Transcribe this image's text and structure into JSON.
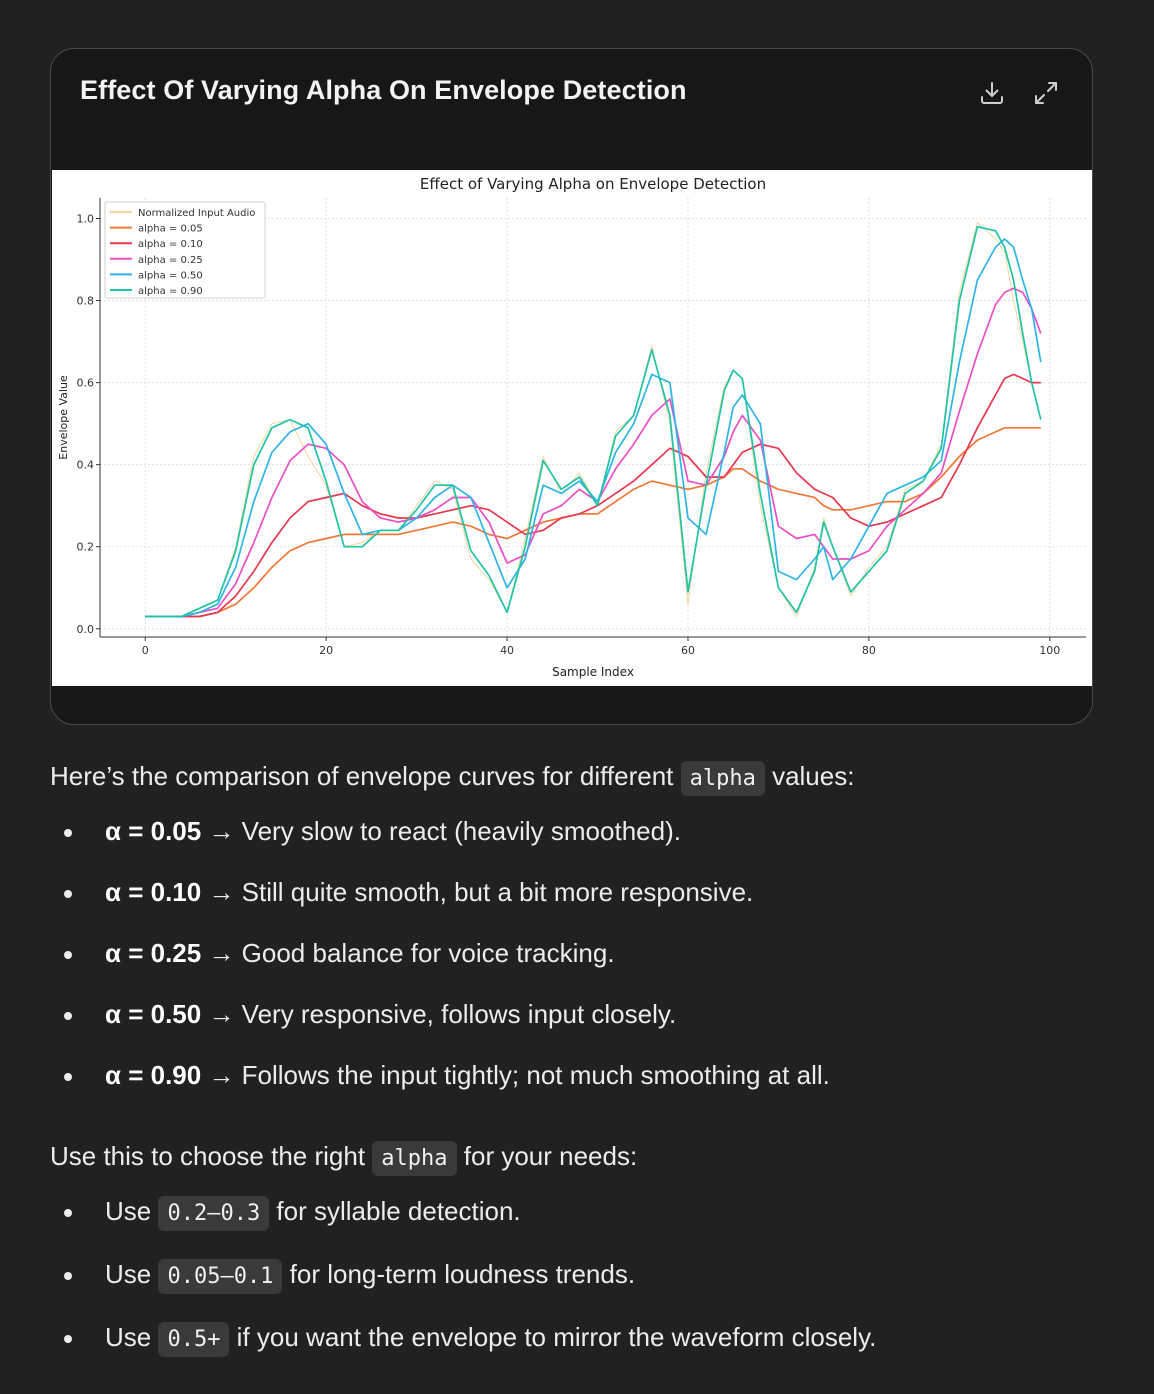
{
  "card": {
    "title": "Effect Of Varying Alpha On Envelope Detection",
    "download_icon": "download-icon",
    "expand_icon": "expand-icon"
  },
  "chart_data": {
    "type": "line",
    "title": "Effect of Varying Alpha on Envelope Detection",
    "xlabel": "Sample Index",
    "ylabel": "Envelope Value",
    "xlim": [
      -5,
      104
    ],
    "ylim": [
      -0.02,
      1.05
    ],
    "xticks": [
      0,
      20,
      40,
      60,
      80,
      100
    ],
    "yticks": [
      0.0,
      0.2,
      0.4,
      0.6,
      0.8,
      1.0
    ],
    "grid": true,
    "legend_position": "top-left",
    "x": [
      0,
      2,
      4,
      6,
      8,
      10,
      12,
      14,
      16,
      18,
      20,
      22,
      24,
      26,
      28,
      30,
      32,
      34,
      36,
      38,
      40,
      42,
      44,
      46,
      48,
      50,
      52,
      54,
      56,
      58,
      60,
      62,
      64,
      65,
      66,
      68,
      70,
      72,
      74,
      75,
      76,
      78,
      80,
      82,
      84,
      86,
      88,
      90,
      92,
      94,
      95,
      96,
      97,
      98,
      99
    ],
    "series": [
      {
        "name": "Normalized Input Audio",
        "color": "#f5d79e",
        "values": [
          0.03,
          0.03,
          0.03,
          0.05,
          0.07,
          0.2,
          0.42,
          0.5,
          0.51,
          0.42,
          0.35,
          0.2,
          0.21,
          0.24,
          0.24,
          0.3,
          0.36,
          0.34,
          0.17,
          0.12,
          0.04,
          0.22,
          0.42,
          0.33,
          0.38,
          0.3,
          0.48,
          0.52,
          0.69,
          0.5,
          0.06,
          0.38,
          0.59,
          0.63,
          0.61,
          0.3,
          0.1,
          0.03,
          0.15,
          0.27,
          0.2,
          0.08,
          0.15,
          0.2,
          0.34,
          0.36,
          0.45,
          0.82,
          0.99,
          0.95,
          0.92,
          0.8,
          0.7,
          0.6,
          0.51
        ]
      },
      {
        "name": "alpha = 0.05",
        "color": "#f07838",
        "values": [
          0.03,
          0.03,
          0.03,
          0.03,
          0.04,
          0.06,
          0.1,
          0.15,
          0.19,
          0.21,
          0.22,
          0.23,
          0.23,
          0.23,
          0.23,
          0.24,
          0.25,
          0.26,
          0.25,
          0.23,
          0.22,
          0.24,
          0.26,
          0.27,
          0.28,
          0.28,
          0.31,
          0.34,
          0.36,
          0.35,
          0.34,
          0.35,
          0.37,
          0.39,
          0.39,
          0.36,
          0.34,
          0.33,
          0.32,
          0.3,
          0.29,
          0.29,
          0.3,
          0.31,
          0.31,
          0.33,
          0.37,
          0.42,
          0.46,
          0.48,
          0.49,
          0.49,
          0.49,
          0.49,
          0.49
        ]
      },
      {
        "name": "alpha = 0.10",
        "color": "#e8384f",
        "values": [
          0.03,
          0.03,
          0.03,
          0.03,
          0.04,
          0.08,
          0.14,
          0.21,
          0.27,
          0.31,
          0.32,
          0.33,
          0.3,
          0.28,
          0.27,
          0.27,
          0.28,
          0.29,
          0.3,
          0.29,
          0.26,
          0.23,
          0.24,
          0.27,
          0.28,
          0.3,
          0.33,
          0.36,
          0.4,
          0.44,
          0.42,
          0.37,
          0.37,
          0.4,
          0.43,
          0.45,
          0.44,
          0.38,
          0.34,
          0.33,
          0.32,
          0.27,
          0.25,
          0.26,
          0.28,
          0.3,
          0.32,
          0.4,
          0.49,
          0.57,
          0.61,
          0.62,
          0.61,
          0.6,
          0.6
        ]
      },
      {
        "name": "alpha = 0.25",
        "color": "#ec4fc3",
        "values": [
          0.03,
          0.03,
          0.03,
          0.04,
          0.05,
          0.11,
          0.21,
          0.32,
          0.41,
          0.45,
          0.44,
          0.4,
          0.31,
          0.27,
          0.26,
          0.27,
          0.29,
          0.32,
          0.32,
          0.26,
          0.16,
          0.18,
          0.28,
          0.3,
          0.34,
          0.31,
          0.39,
          0.45,
          0.52,
          0.56,
          0.36,
          0.35,
          0.42,
          0.48,
          0.52,
          0.46,
          0.25,
          0.22,
          0.23,
          0.2,
          0.17,
          0.17,
          0.19,
          0.25,
          0.29,
          0.33,
          0.38,
          0.53,
          0.67,
          0.79,
          0.82,
          0.83,
          0.82,
          0.78,
          0.72
        ]
      },
      {
        "name": "alpha = 0.50",
        "color": "#2eb5e8",
        "values": [
          0.03,
          0.03,
          0.03,
          0.04,
          0.06,
          0.15,
          0.31,
          0.43,
          0.48,
          0.5,
          0.45,
          0.33,
          0.23,
          0.24,
          0.24,
          0.27,
          0.32,
          0.35,
          0.32,
          0.21,
          0.1,
          0.17,
          0.35,
          0.33,
          0.36,
          0.31,
          0.43,
          0.5,
          0.62,
          0.6,
          0.27,
          0.23,
          0.43,
          0.54,
          0.57,
          0.5,
          0.14,
          0.12,
          0.17,
          0.2,
          0.12,
          0.17,
          0.25,
          0.33,
          0.35,
          0.37,
          0.41,
          0.65,
          0.85,
          0.93,
          0.95,
          0.93,
          0.85,
          0.78,
          0.65
        ]
      },
      {
        "name": "alpha = 0.90",
        "color": "#1ec4a8",
        "values": [
          0.03,
          0.03,
          0.03,
          0.05,
          0.07,
          0.19,
          0.4,
          0.49,
          0.51,
          0.49,
          0.36,
          0.2,
          0.2,
          0.24,
          0.24,
          0.29,
          0.35,
          0.35,
          0.19,
          0.13,
          0.04,
          0.2,
          0.41,
          0.34,
          0.37,
          0.3,
          0.47,
          0.52,
          0.68,
          0.52,
          0.09,
          0.35,
          0.58,
          0.63,
          0.61,
          0.33,
          0.1,
          0.04,
          0.14,
          0.26,
          0.2,
          0.09,
          0.14,
          0.19,
          0.33,
          0.36,
          0.44,
          0.8,
          0.98,
          0.97,
          0.93,
          0.85,
          0.72,
          0.6,
          0.51
        ]
      }
    ]
  },
  "content": {
    "intro": {
      "before": "Here’s the comparison of envelope curves for different ",
      "code": "alpha",
      "after": " values:"
    },
    "alpha_list": [
      {
        "strong": "α = 0.05",
        "text": " → Very slow to react (heavily smoothed)."
      },
      {
        "strong": "α = 0.10",
        "text": " → Still quite smooth, but a bit more responsive."
      },
      {
        "strong": "α = 0.25",
        "text": " → Good balance for voice tracking."
      },
      {
        "strong": "α = 0.50",
        "text": " → Very responsive, follows input closely."
      },
      {
        "strong": "α = 0.90",
        "text": " → Follows the input tightly; not much smoothing at all."
      }
    ],
    "usage": {
      "before": "Use this to choose the right ",
      "code": "alpha",
      "after": " for your needs:"
    },
    "usage_list": [
      {
        "before": "Use ",
        "code": "0.2–0.3",
        "after": " for syllable detection."
      },
      {
        "before": "Use ",
        "code": "0.05–0.1",
        "after": " for long-term loudness trends."
      },
      {
        "before": "Use ",
        "code": "0.5+",
        "after": " if you want the envelope to mirror the waveform closely."
      }
    ]
  }
}
